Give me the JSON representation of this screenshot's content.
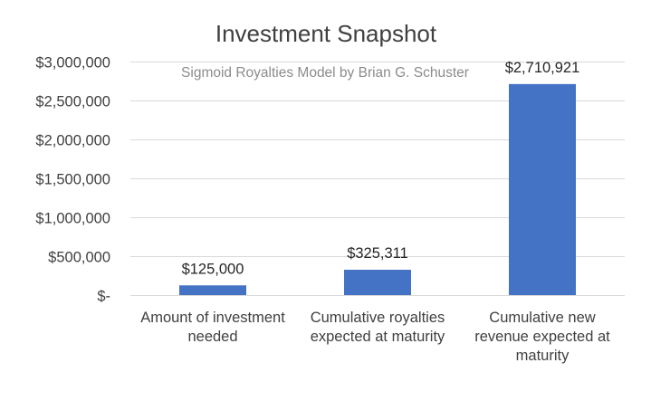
{
  "chart_data": {
    "type": "bar",
    "title": "Investment Snapshot",
    "subtitle": "Sigmoid Royalties Model by Brian G. Schuster",
    "categories": [
      "Amount of investment needed",
      "Cumulative royalties expected at maturity",
      "Cumulative new revenue expected at maturity"
    ],
    "values": [
      125000,
      325311,
      2710921
    ],
    "data_labels": [
      "$125,000",
      "$325,311",
      "$2,710,921"
    ],
    "ylim": [
      0,
      3000000
    ],
    "yticks": [
      0,
      500000,
      1000000,
      1500000,
      2000000,
      2500000,
      3000000
    ],
    "ytick_labels": [
      "$-",
      "$500,000",
      "$1,000,000",
      "$1,500,000",
      "$2,000,000",
      "$2,500,000",
      "$3,000,000"
    ],
    "grid": true,
    "bar_color": "#4472c4",
    "xlabel": "",
    "ylabel": ""
  }
}
